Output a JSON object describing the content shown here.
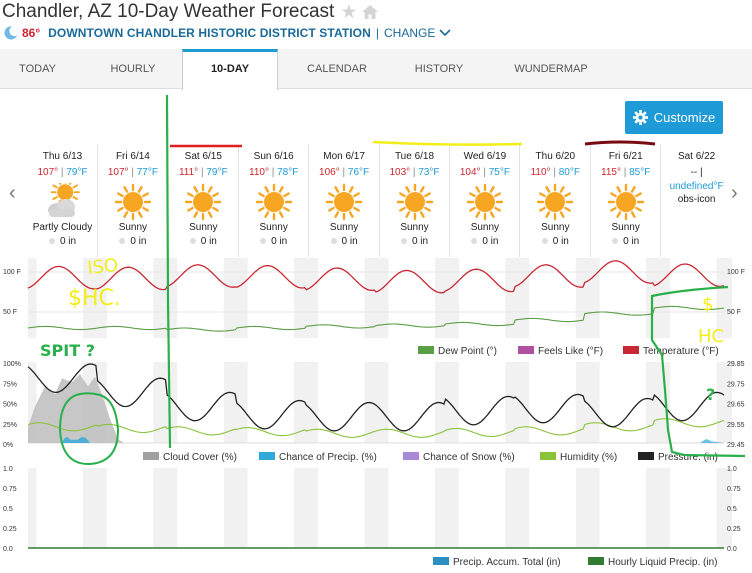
{
  "header": {
    "title": "Chandler, AZ 10-Day Weather Forecast",
    "current_temp": "86°",
    "station": "DOWNTOWN CHANDLER HISTORIC DISTRICT STATION",
    "separator": "|",
    "change": "CHANGE"
  },
  "tabs": [
    {
      "label": "TODAY",
      "active": false
    },
    {
      "label": "HOURLY",
      "active": false
    },
    {
      "label": "10-DAY",
      "active": true
    },
    {
      "label": "CALENDAR",
      "active": false
    },
    {
      "label": "HISTORY",
      "active": false
    },
    {
      "label": "WUNDERMAP",
      "active": false
    }
  ],
  "customize": {
    "label": "Customize"
  },
  "days": [
    {
      "date": "Thu 6/13",
      "hi": "107°",
      "lo": "79°F",
      "icon": "partly-cloudy-icon",
      "cond": "Partly Cloudy",
      "precip": "0 in"
    },
    {
      "date": "Fri 6/14",
      "hi": "107°",
      "lo": "77°F",
      "icon": "sun-icon",
      "cond": "Sunny",
      "precip": "0 in"
    },
    {
      "date": "Sat 6/15",
      "hi": "111°",
      "lo": "79°F",
      "icon": "sun-icon",
      "cond": "Sunny",
      "precip": "0 in"
    },
    {
      "date": "Sun 6/16",
      "hi": "110°",
      "lo": "78°F",
      "icon": "sun-icon",
      "cond": "Sunny",
      "precip": "0 in"
    },
    {
      "date": "Mon 6/17",
      "hi": "106°",
      "lo": "76°F",
      "icon": "sun-icon",
      "cond": "Sunny",
      "precip": "0 in"
    },
    {
      "date": "Tue 6/18",
      "hi": "103°",
      "lo": "73°F",
      "icon": "sun-icon",
      "cond": "Sunny",
      "precip": "0 in"
    },
    {
      "date": "Wed 6/19",
      "hi": "104°",
      "lo": "75°F",
      "icon": "sun-icon",
      "cond": "Sunny",
      "precip": "0 in"
    },
    {
      "date": "Thu 6/20",
      "hi": "110°",
      "lo": "80°F",
      "icon": "sun-icon",
      "cond": "Sunny",
      "precip": "0 in"
    },
    {
      "date": "Fri 6/21",
      "hi": "115°",
      "lo": "85°F",
      "icon": "sun-icon",
      "cond": "Sunny",
      "precip": "0 in"
    },
    {
      "date": "Sat 6/22",
      "hi_text": "-- |",
      "lo_text": "undefined°F",
      "icon_text": "obs-icon"
    }
  ],
  "temp_chart": {
    "yticks_left": [
      "100 F",
      "50 F"
    ],
    "yticks_right": [
      "100 F",
      "50 F"
    ],
    "legend": [
      {
        "name": "Dew Point (°)",
        "color": "#5a9e45"
      },
      {
        "name": "Feels Like (°F)",
        "color": "#b050a0"
      },
      {
        "name": "Temperature (°F)",
        "color": "#c82832"
      }
    ]
  },
  "cloud_chart": {
    "yticks_left": [
      "100%",
      "75%",
      "50%",
      "25%",
      "0%"
    ],
    "yticks_right": [
      "29.85",
      "29.75",
      "29.65",
      "29.55",
      "29.45"
    ],
    "legend": [
      {
        "name": "Cloud Cover (%)",
        "color": "#a0a0a0"
      },
      {
        "name": "Chance of Precip. (%)",
        "color": "#30a8d8"
      },
      {
        "name": "Chance of Snow (%)",
        "color": "#a88ad8"
      },
      {
        "name": "Humidity (%)",
        "color": "#8ac43c"
      },
      {
        "name": "Pressure. (in)",
        "color": "#222222"
      }
    ]
  },
  "precip_chart": {
    "yticks_left": [
      "1.0",
      "0.75",
      "0.5",
      "0.25",
      "0.0"
    ],
    "yticks_right": [
      "1.0",
      "0.75",
      "0.5",
      "0.25",
      "0.0"
    ],
    "legend": [
      {
        "name": "Precip. Accum. Total (in)",
        "color": "#2b8fc0"
      },
      {
        "name": "Hourly Liquid Precip. (in)",
        "color": "#2e7d32"
      }
    ]
  },
  "annotations": {
    "temp_left": "ISO\n$HC.",
    "spit": "SPIT ?",
    "temp_right": "$\nHC",
    "question": "?"
  },
  "colors": {
    "accent": "#1e9ad6",
    "hi": "#d0242e",
    "lo": "#1e9ad6",
    "station": "#1a6a9a"
  }
}
